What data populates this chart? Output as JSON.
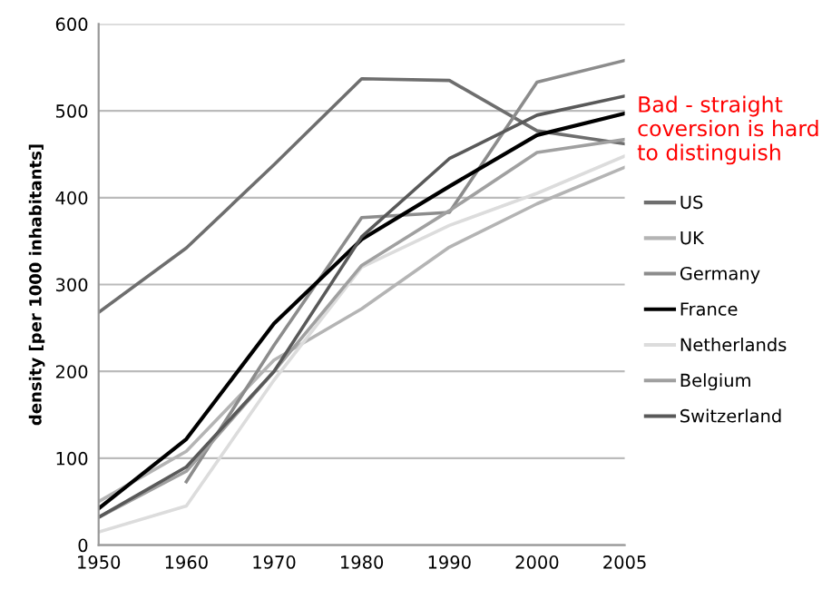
{
  "chart_data": {
    "type": "line",
    "ylabel": "density [per 1000 inhabitants]",
    "categories": [
      "1950",
      "1960",
      "1970",
      "1980",
      "1990",
      "2000",
      "2005"
    ],
    "series": [
      {
        "name": "US",
        "color": "#6e6e6e",
        "values": [
          268,
          342,
          438,
          537,
          535,
          477,
          462
        ]
      },
      {
        "name": "UK",
        "color": "#b4b4b4",
        "values": [
          50,
          108,
          213,
          272,
          343,
          393,
          435
        ]
      },
      {
        "name": "Germany",
        "color": "#8c8c8c",
        "values": [
          null,
          73,
          230,
          377,
          383,
          533,
          558
        ]
      },
      {
        "name": "France",
        "color": "#000000",
        "values": [
          42,
          122,
          255,
          352,
          413,
          472,
          497
        ]
      },
      {
        "name": "Netherlands",
        "color": "#dcdcdc",
        "values": [
          15,
          45,
          190,
          320,
          368,
          405,
          448
        ]
      },
      {
        "name": "Belgium",
        "color": "#a0a0a0",
        "values": [
          32,
          85,
          200,
          322,
          385,
          452,
          467
        ]
      },
      {
        "name": "Switzerland",
        "color": "#595959",
        "values": [
          32,
          90,
          200,
          355,
          445,
          495,
          517
        ]
      }
    ],
    "ylim": [
      0,
      600
    ],
    "yticks": [
      0,
      100,
      200,
      300,
      400,
      500,
      600
    ],
    "grid": "y",
    "legend": "right",
    "marker": "none",
    "line_style": "solid",
    "annotations": [
      "Bad - straight coversion is hard to distinguish"
    ]
  }
}
